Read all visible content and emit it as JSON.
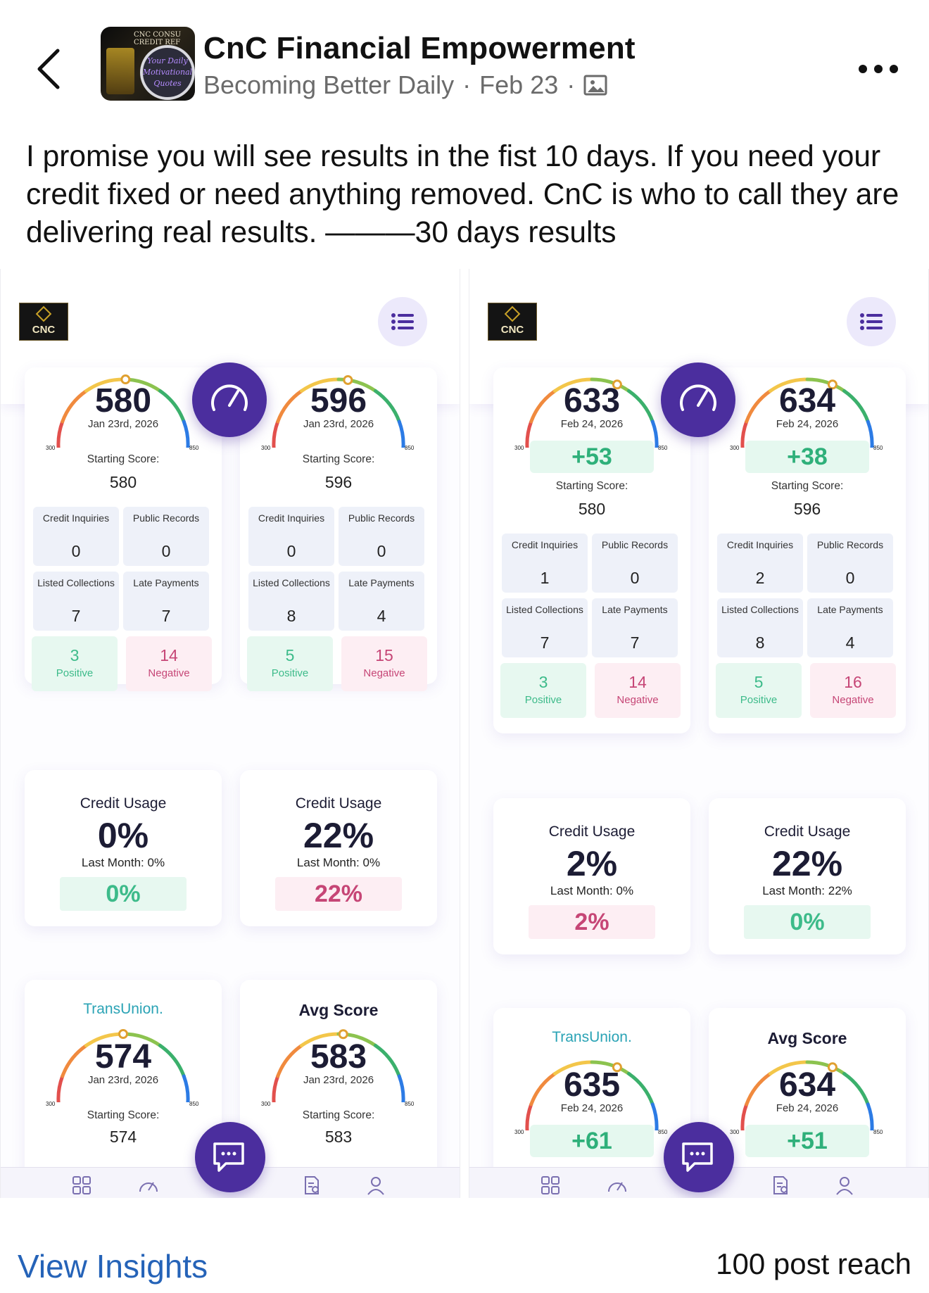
{
  "post": {
    "page_name": "CnC Financial Empowerment",
    "group_name": "Becoming Better Daily",
    "date": "Feb 23",
    "separator": "·",
    "caption": "I promise you will see results in the fist 10 days. If you need your credit fixed or need anything removed. CnC is who to call they are delivering real results. ———30 days results",
    "avatar_text": "CNC CONSU CREDIT REF",
    "avatar_badge": "Your Daily Motivational Quotes"
  },
  "app": {
    "logo_text": "CNC",
    "tick_min": "300",
    "tick_max": "850",
    "starting_label": "Starting Score:",
    "labels": {
      "inquiries": "Credit Inquiries",
      "public": "Public Records",
      "collections": "Listed Collections",
      "late": "Late Payments",
      "positive": "Positive",
      "negative": "Negative",
      "usage_title": "Credit Usage",
      "last_month": "Last Month:",
      "bureau": "TransUnion.",
      "avg_title": "Avg Score"
    },
    "icons": [
      "menu-icon",
      "gauge-icon",
      "chat-icon",
      "grid-icon",
      "report-icon",
      "user-icon"
    ],
    "colors": {
      "accent": "#4b2e9e",
      "positive": "#3dbb8a",
      "negative": "#c64676"
    }
  },
  "shots": [
    {
      "scores": [
        {
          "score": "580",
          "date": "Jan 23rd, 2026",
          "delta": null,
          "start": "580",
          "inquiries": "0",
          "public": "0",
          "collections": "7",
          "late": "7",
          "positive": "3",
          "negative": "14",
          "fraction": 0.51
        },
        {
          "score": "596",
          "date": "Jan 23rd, 2026",
          "delta": null,
          "start": "596",
          "inquiries": "0",
          "public": "0",
          "collections": "8",
          "late": "4",
          "positive": "5",
          "negative": "15",
          "fraction": 0.54
        }
      ],
      "usage": [
        {
          "value": "0%",
          "last": "0%",
          "change": "0%",
          "trend": "good"
        },
        {
          "value": "22%",
          "last": "0%",
          "change": "22%",
          "trend": "bad"
        }
      ],
      "bottom": [
        {
          "score": "574",
          "date": "Jan 23rd, 2026",
          "start": "574",
          "fraction": 0.5
        },
        {
          "score": "583",
          "date": "Jan 23rd, 2026",
          "start": "583",
          "fraction": 0.52
        }
      ]
    },
    {
      "scores": [
        {
          "score": "633",
          "date": "Feb 24, 2026",
          "delta": "+53",
          "start": "580",
          "inquiries": "1",
          "public": "0",
          "collections": "7",
          "late": "7",
          "positive": "3",
          "negative": "14",
          "fraction": 0.61
        },
        {
          "score": "634",
          "date": "Feb 24, 2026",
          "delta": "+38",
          "start": "596",
          "inquiries": "2",
          "public": "0",
          "collections": "8",
          "late": "4",
          "positive": "5",
          "negative": "16",
          "fraction": 0.61
        }
      ],
      "usage": [
        {
          "value": "2%",
          "last": "0%",
          "change": "2%",
          "trend": "bad"
        },
        {
          "value": "22%",
          "last": "22%",
          "change": "0%",
          "trend": "good"
        }
      ],
      "bottom": [
        {
          "score": "635",
          "date": "Feb 24, 2026",
          "delta": "+61",
          "fraction": 0.61
        },
        {
          "score": "634",
          "date": "Feb 24, 2026",
          "delta": "+51",
          "fraction": 0.61
        }
      ]
    }
  ],
  "footer": {
    "insights": "View Insights",
    "reach": "100 post reach"
  }
}
